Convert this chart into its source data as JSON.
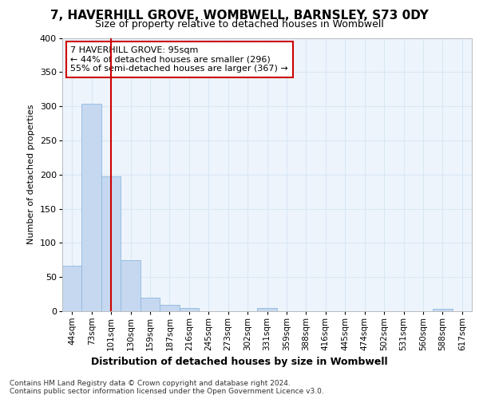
{
  "title1": "7, HAVERHILL GROVE, WOMBWELL, BARNSLEY, S73 0DY",
  "title2": "Size of property relative to detached houses in Wombwell",
  "xlabel": "Distribution of detached houses by size in Wombwell",
  "ylabel": "Number of detached properties",
  "categories": [
    "44sqm",
    "73sqm",
    "101sqm",
    "130sqm",
    "159sqm",
    "187sqm",
    "216sqm",
    "245sqm",
    "273sqm",
    "302sqm",
    "331sqm",
    "359sqm",
    "388sqm",
    "416sqm",
    "445sqm",
    "474sqm",
    "502sqm",
    "531sqm",
    "560sqm",
    "588sqm",
    "617sqm"
  ],
  "values": [
    67,
    304,
    197,
    75,
    20,
    9,
    5,
    0,
    0,
    0,
    5,
    0,
    0,
    0,
    0,
    0,
    0,
    0,
    0,
    4,
    0
  ],
  "bar_color": "#c5d8f0",
  "bar_edge_color": "#8fb8de",
  "grid_color": "#d8e8f5",
  "property_line_x": 2.0,
  "property_line_color": "#cc0000",
  "annotation_line1": "7 HAVERHILL GROVE: 95sqm",
  "annotation_line2": "← 44% of detached houses are smaller (296)",
  "annotation_line3": "55% of semi-detached houses are larger (367) →",
  "annotation_box_edgecolor": "#cc0000",
  "ylim": [
    0,
    400
  ],
  "yticks": [
    0,
    50,
    100,
    150,
    200,
    250,
    300,
    350,
    400
  ],
  "footer": "Contains HM Land Registry data © Crown copyright and database right 2024.\nContains public sector information licensed under the Open Government Licence v3.0.",
  "bg_color": "#eef4fc",
  "title1_fontsize": 11,
  "title2_fontsize": 9,
  "ylabel_fontsize": 8,
  "xlabel_fontsize": 9,
  "tick_fontsize": 8,
  "xtick_fontsize": 7.5,
  "footer_fontsize": 6.5,
  "ann_fontsize": 8
}
